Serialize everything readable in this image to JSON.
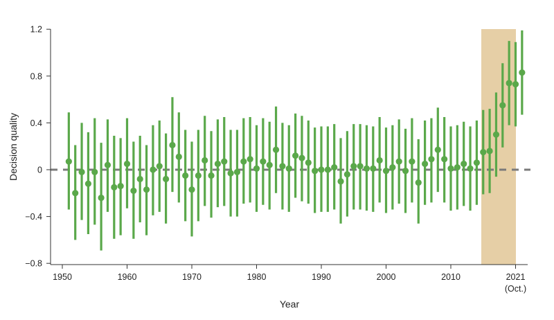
{
  "chart_data": {
    "type": "errorbar",
    "title": "",
    "xlabel": "Year",
    "ylabel": "Decision quality",
    "ylim": [
      -0.8,
      1.2
    ],
    "xlim": [
      1950,
      2021
    ],
    "yticks": [
      "1.2",
      "0.8",
      "0.4",
      "0",
      "−0.4",
      "−0.8"
    ],
    "ytick_values": [
      1.2,
      0.8,
      0.4,
      0,
      -0.4,
      -0.8
    ],
    "xticks": [
      {
        "label": "1950",
        "pos": 1950
      },
      {
        "label": "1960",
        "pos": 1960
      },
      {
        "label": "1970",
        "pos": 1970
      },
      {
        "label": "1980",
        "pos": 1980
      },
      {
        "label": "1990",
        "pos": 1990
      },
      {
        "label": "2000",
        "pos": 2000
      },
      {
        "label": "2010",
        "pos": 2010
      },
      {
        "label": "2021",
        "sublabel": "(Oct.)",
        "pos": 2020
      }
    ],
    "reference_line": {
      "y": 0,
      "style": "dashed",
      "color": "#7a7a7a"
    },
    "highlight_region": {
      "x_start": 2015.5,
      "x_end": 2020.5,
      "color": "#e6cfa6"
    },
    "grid": false,
    "legend": null,
    "series": [
      {
        "name": "Decision quality",
        "color": "#5aa84a",
        "x": [
          1951,
          1952,
          1953,
          1954,
          1955,
          1956,
          1957,
          1958,
          1959,
          1960,
          1961,
          1962,
          1963,
          1964,
          1965,
          1966,
          1967,
          1968,
          1969,
          1970,
          1971,
          1972,
          1973,
          1974,
          1975,
          1976,
          1977,
          1978,
          1979,
          1980,
          1981,
          1982,
          1983,
          1984,
          1985,
          1986,
          1987,
          1988,
          1989,
          1990,
          1991,
          1992,
          1993,
          1994,
          1995,
          1996,
          1997,
          1998,
          1999,
          2000,
          2001,
          2002,
          2003,
          2004,
          2005,
          2006,
          2007,
          2008,
          2009,
          2010,
          2011,
          2012,
          2013,
          2014,
          2015,
          2016,
          2017,
          2018,
          2019,
          2020,
          2021
        ],
        "values": [
          0.07,
          -0.2,
          -0.02,
          -0.12,
          -0.02,
          -0.24,
          0.04,
          -0.15,
          -0.14,
          0.05,
          -0.18,
          -0.08,
          -0.17,
          0.0,
          0.03,
          -0.08,
          0.21,
          0.11,
          -0.05,
          -0.17,
          -0.05,
          0.08,
          -0.05,
          0.05,
          0.07,
          -0.03,
          -0.02,
          0.07,
          0.09,
          0.01,
          0.07,
          0.04,
          0.17,
          0.03,
          0.01,
          0.12,
          0.1,
          0.06,
          -0.01,
          0.0,
          0.0,
          0.02,
          -0.1,
          -0.04,
          0.03,
          0.03,
          0.01,
          0.01,
          0.08,
          -0.01,
          0.02,
          0.07,
          -0.01,
          0.07,
          -0.11,
          0.05,
          0.09,
          0.17,
          0.09,
          0.01,
          0.02,
          0.05,
          0.01,
          0.06,
          0.15,
          0.16,
          0.3,
          0.55,
          0.74,
          0.73,
          0.83
        ],
        "upper": [
          0.49,
          0.21,
          0.4,
          0.32,
          0.44,
          0.23,
          0.43,
          0.29,
          0.27,
          0.44,
          0.24,
          0.29,
          0.21,
          0.38,
          0.42,
          0.31,
          0.62,
          0.49,
          0.34,
          0.24,
          0.34,
          0.46,
          0.33,
          0.43,
          0.45,
          0.34,
          0.34,
          0.44,
          0.45,
          0.38,
          0.44,
          0.41,
          0.54,
          0.4,
          0.38,
          0.48,
          0.46,
          0.42,
          0.36,
          0.37,
          0.37,
          0.39,
          0.27,
          0.33,
          0.39,
          0.39,
          0.38,
          0.37,
          0.45,
          0.36,
          0.38,
          0.43,
          0.35,
          0.44,
          0.26,
          0.42,
          0.44,
          0.53,
          0.45,
          0.37,
          0.38,
          0.41,
          0.37,
          0.42,
          0.51,
          0.52,
          0.66,
          0.91,
          1.1,
          1.09,
          1.19
        ],
        "lower": [
          -0.34,
          -0.6,
          -0.43,
          -0.55,
          -0.47,
          -0.69,
          -0.36,
          -0.59,
          -0.56,
          -0.33,
          -0.59,
          -0.45,
          -0.56,
          -0.39,
          -0.36,
          -0.46,
          -0.19,
          -0.28,
          -0.44,
          -0.57,
          -0.44,
          -0.31,
          -0.41,
          -0.32,
          -0.31,
          -0.4,
          -0.4,
          -0.29,
          -0.28,
          -0.36,
          -0.3,
          -0.34,
          -0.2,
          -0.34,
          -0.36,
          -0.24,
          -0.27,
          -0.29,
          -0.37,
          -0.36,
          -0.36,
          -0.34,
          -0.46,
          -0.4,
          -0.34,
          -0.34,
          -0.35,
          -0.36,
          -0.28,
          -0.37,
          -0.34,
          -0.29,
          -0.37,
          -0.28,
          -0.46,
          -0.3,
          -0.28,
          -0.19,
          -0.28,
          -0.35,
          -0.34,
          -0.31,
          -0.35,
          -0.3,
          -0.21,
          -0.2,
          -0.06,
          0.19,
          0.38,
          0.37,
          0.47
        ]
      }
    ]
  }
}
